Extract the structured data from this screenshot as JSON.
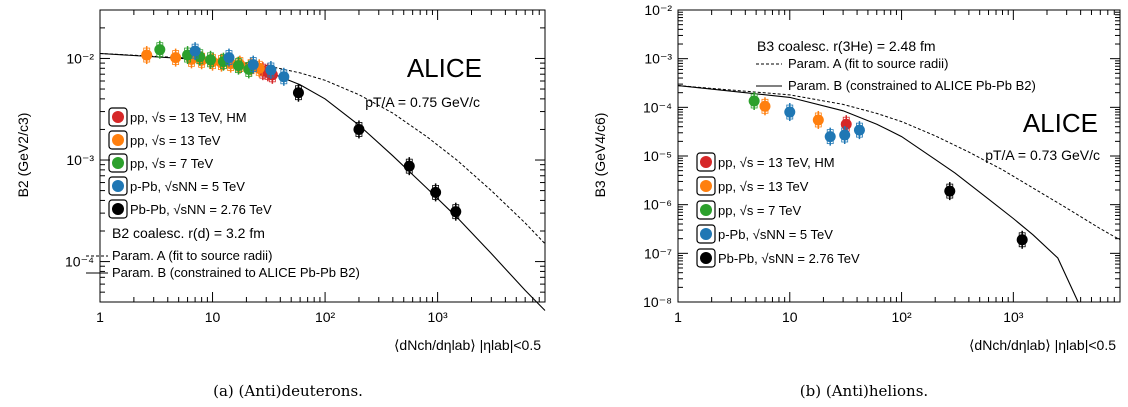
{
  "captions": [
    "(a) (Anti)deuterons.",
    "(b) (Anti)helions."
  ],
  "chart_data": [
    {
      "type": "scatter",
      "ylabel": "B2 (GeV2/c3)",
      "xlabel": "⟨dNch/dηlab⟩ |ηlab|<0.5",
      "xlog": true,
      "ylog": true,
      "xlim": [
        1,
        9000
      ],
      "ylim": [
        4e-05,
        0.03
      ],
      "xticks": [
        "1",
        "10",
        "10²",
        "10³"
      ],
      "yticks": [
        "10⁻⁴",
        "10⁻³",
        "10⁻²"
      ],
      "alice": "ALICE",
      "kinematics": "pT/A = 0.75 GeV/c",
      "coalescence": "B2 coalesc. r(d) = 3.2 fm",
      "param_a": "Param. A (fit to source radii)",
      "param_b": "Param. B (constrained to ALICE Pb-Pb B2)",
      "series": [
        {
          "name": "pp, √s = 13 TeV, HM",
          "color": "#d62728",
          "x": [
            28,
            31,
            34
          ],
          "y": [
            0.0075,
            0.0073,
            0.0069
          ]
        },
        {
          "name": "pp, √s = 13 TeV",
          "color": "#ff7f0e",
          "x": [
            2.6,
            4.7,
            6.5,
            8.0,
            10.0,
            12.0,
            14.5,
            17.5,
            22,
            26
          ],
          "y": [
            0.0108,
            0.0102,
            0.0098,
            0.0096,
            0.0093,
            0.0091,
            0.0089,
            0.0087,
            0.0083,
            0.008
          ]
        },
        {
          "name": "pp, √s = 7 TeV",
          "color": "#2ca02c",
          "x": [
            3.4,
            6.0,
            7.7,
            9.6,
            12.5,
            17.0,
            21.0
          ],
          "y": [
            0.0122,
            0.0108,
            0.0104,
            0.0097,
            0.0093,
            0.0085,
            0.0078
          ]
        },
        {
          "name": "p-Pb, √sNN = 5 TeV",
          "color": "#1f77b4",
          "x": [
            7.0,
            14.0,
            23.0,
            33.0,
            43.0
          ],
          "y": [
            0.0118,
            0.0102,
            0.0087,
            0.0077,
            0.0066
          ]
        },
        {
          "name": "Pb-Pb, √sNN = 2.76 TeV",
          "color": "#000000",
          "x": [
            58,
            200,
            560,
            960,
            1450
          ],
          "y": [
            0.0046,
            0.002,
            0.00087,
            0.00048,
            0.00031
          ]
        }
      ],
      "curve_a": {
        "x": [
          1,
          10,
          30,
          60,
          100,
          200,
          400,
          800,
          1500,
          3000,
          6000,
          9000
        ],
        "y": [
          0.0112,
          0.0098,
          0.0085,
          0.0072,
          0.0061,
          0.0044,
          0.0029,
          0.0017,
          0.00099,
          0.0005,
          0.00024,
          0.00015
        ]
      },
      "curve_b": {
        "x": [
          1,
          10,
          30,
          60,
          100,
          200,
          400,
          800,
          1500,
          3000,
          6000,
          9000
        ],
        "y": [
          0.0112,
          0.0096,
          0.0075,
          0.0055,
          0.004,
          0.0022,
          0.0011,
          0.00053,
          0.00027,
          0.00012,
          5.2e-05,
          3.3e-05
        ]
      }
    },
    {
      "type": "scatter",
      "ylabel": "B3 (GeV4/c6)",
      "xlabel": "⟨dNch/dηlab⟩ |ηlab|<0.5",
      "xlog": true,
      "ylog": true,
      "xlim": [
        1,
        9000
      ],
      "ylim": [
        1e-08,
        0.01
      ],
      "xticks": [
        "1",
        "10",
        "10²",
        "10³"
      ],
      "yticks": [
        "10⁻⁸",
        "10⁻⁷",
        "10⁻⁶",
        "10⁻⁵",
        "10⁻⁴",
        "10⁻³",
        "10⁻²"
      ],
      "alice": "ALICE",
      "kinematics": "pT/A = 0.73 GeV/c",
      "coalescence": "B3 coalesc. r(3He) = 2.48 fm",
      "param_a": "Param. A (fit to source radii)",
      "param_b": "Param. B (constrained to ALICE Pb-Pb B2)",
      "series": [
        {
          "name": "pp, √s = 13 TeV, HM",
          "color": "#d62728",
          "x": [
            32
          ],
          "y": [
            4.5e-05
          ]
        },
        {
          "name": "pp, √s = 13 TeV",
          "color": "#ff7f0e",
          "x": [
            6.0,
            18.0
          ],
          "y": [
            0.000105,
            5.5e-05
          ]
        },
        {
          "name": "pp, √s = 7 TeV",
          "color": "#2ca02c",
          "x": [
            4.8
          ],
          "y": [
            0.000135
          ]
        },
        {
          "name": "p-Pb, √sNN = 5 TeV",
          "color": "#1f77b4",
          "x": [
            10.0,
            23.0,
            31.0,
            42.0
          ],
          "y": [
            8e-05,
            2.5e-05,
            2.7e-05,
            3.4e-05
          ]
        },
        {
          "name": "Pb-Pb, √sNN = 2.76 TeV",
          "color": "#000000",
          "x": [
            270,
            1200
          ],
          "y": [
            1.9e-06,
            1.9e-07
          ]
        }
      ],
      "curve_a": {
        "x": [
          1,
          10,
          30,
          60,
          100,
          200,
          400,
          800,
          1500,
          3000,
          6000,
          9000
        ],
        "y": [
          0.00028,
          0.00018,
          0.000115,
          7.5e-05,
          5.1e-05,
          2.6e-05,
          1.2e-05,
          5.2e-06,
          2.2e-06,
          8.5e-07,
          3.2e-07,
          1.9e-07
        ]
      },
      "curve_b": {
        "x": [
          1,
          10,
          30,
          60,
          100,
          200,
          300,
          600,
          1000,
          1500,
          2500,
          3800
        ],
        "y": [
          0.00028,
          0.00016,
          8.5e-05,
          4.5e-05,
          2.5e-05,
          8.5e-06,
          4.5e-06,
          1.3e-06,
          5.2e-07,
          2.4e-07,
          8e-08,
          1e-08
        ]
      }
    }
  ]
}
